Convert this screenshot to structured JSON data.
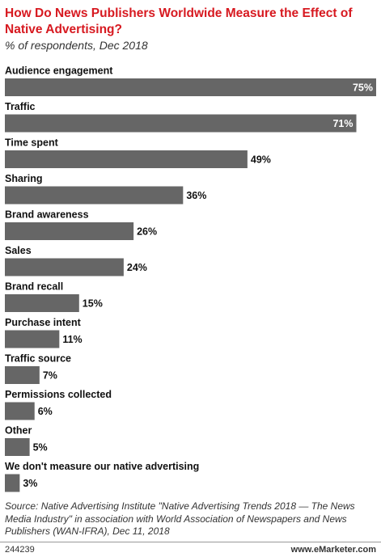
{
  "chart_data": {
    "type": "bar",
    "orientation": "horizontal",
    "title": "How Do News Publishers Worldwide Measure the Effect of Native Advertising?",
    "subtitle": "% of respondents, Dec 2018",
    "categories": [
      "Audience engagement",
      "Traffic",
      "Time spent",
      "Sharing",
      "Brand awareness",
      "Sales",
      "Brand recall",
      "Purchase intent",
      "Traffic source",
      "Permissions collected",
      "Other",
      "We don't measure our native advertising"
    ],
    "values": [
      75,
      71,
      49,
      36,
      26,
      24,
      15,
      11,
      7,
      6,
      5,
      3
    ],
    "value_labels": [
      "75%",
      "71%",
      "49%",
      "36%",
      "26%",
      "24%",
      "15%",
      "11%",
      "7%",
      "6%",
      "5%",
      "3%"
    ],
    "color": "#666666",
    "source": "Source: Native Advertising Institute \"Native Advertising Trends 2018 — The News Media Industry\" in association with World Association of Newspapers and News Publishers (WAN-IFRA), Dec 11, 2018",
    "chart_id": "244239",
    "site": "www.eMarketer.com"
  }
}
